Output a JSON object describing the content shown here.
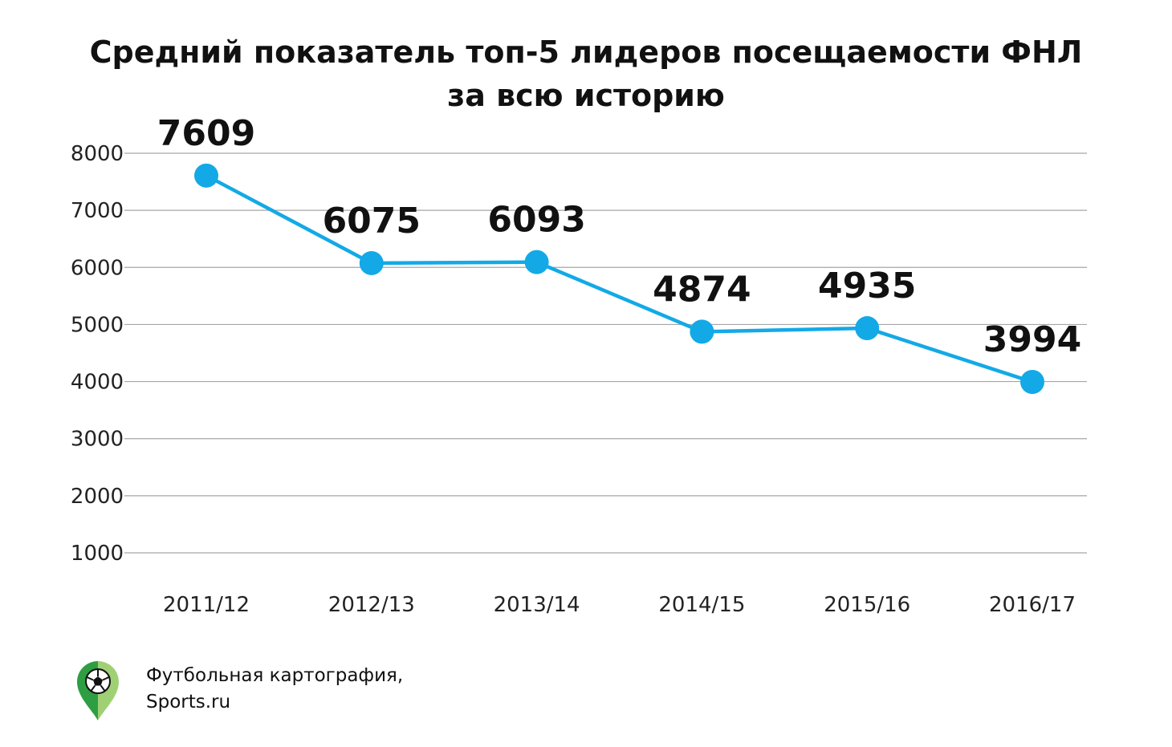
{
  "chart_data": {
    "type": "line",
    "title_lines": [
      "Средний показатель топ-5 лидеров посещаемости ФНЛ",
      "за всю историю"
    ],
    "xlabel": "",
    "ylabel": "",
    "categories": [
      "2011/12",
      "2012/13",
      "2013/14",
      "2014/15",
      "2015/16",
      "2016/17"
    ],
    "series": [
      {
        "values": [
          7609,
          6075,
          6093,
          4874,
          4935,
          3994
        ],
        "color": "#13a9e6"
      }
    ],
    "y_ticks": [
      "8000",
      "7000",
      "6000",
      "5000",
      "4000",
      "3000",
      "2000",
      "1000"
    ],
    "ylim": [
      1000,
      8000
    ],
    "grid": true,
    "legend": "none",
    "data_labels": true
  },
  "footer": {
    "credit_lines": [
      "Футбольная картография,",
      "Sports.ru"
    ],
    "logo_icon": "map-pin-football-icon",
    "logo_colors": [
      "#2e9e43",
      "#9fd174"
    ]
  }
}
